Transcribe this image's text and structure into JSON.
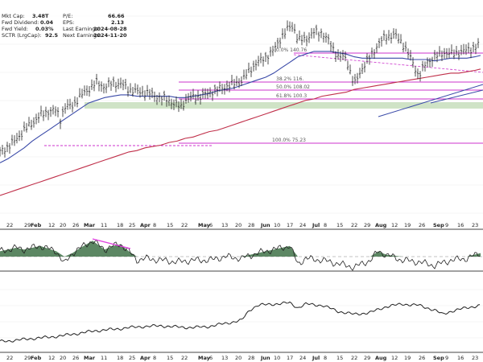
{
  "info": {
    "left": [
      {
        "label": "Mkt Cap:",
        "value": "3.48T"
      },
      {
        "label": "Fwd Dividend:",
        "value": "0.04"
      },
      {
        "label": "Fwd Yield:",
        "value": "0.03%"
      },
      {
        "label": "SCTR (LrgCap):",
        "value": "92.5"
      }
    ],
    "right": [
      {
        "label": "P/E:",
        "value": "66.66"
      },
      {
        "label": "EPS:",
        "value": "2.13"
      },
      {
        "label": "Last Earnings:",
        "value": "2024-08-28"
      },
      {
        "label": "Next Earnings:",
        "value": "2024-11-20"
      }
    ]
  },
  "colors": {
    "price": "#222222",
    "ma50": "#3a4aa8",
    "ma200": "#c0304a",
    "fib": "#cc33cc",
    "zone": "#cfe3c6",
    "panel_fill": "#4a7a52",
    "trend": "#3a4aa8"
  },
  "x_axis_ticks": [
    "22",
    "29",
    "Feb",
    "12",
    "20",
    "26",
    "Mar",
    "11",
    "18",
    "25",
    "Apr",
    "8",
    "15",
    "22",
    "May",
    "6",
    "13",
    "20",
    "28",
    "Jun",
    "10",
    "17",
    "24",
    "Jul",
    "8",
    "15",
    "22",
    "29",
    "Aug",
    "12",
    "19",
    "26",
    "Sep",
    "9",
    "16",
    "23"
  ],
  "x_axis_month_ticks": [
    "Feb",
    "Mar",
    "Apr",
    "May",
    "Jun",
    "Jul",
    "Aug",
    "Sep"
  ],
  "fib_levels": [
    {
      "label": "0.0% 140.76",
      "value": 140.76
    },
    {
      "label": "38.2% 116.",
      "value": 116.0
    },
    {
      "label": "50.0% 108.02",
      "value": 108.02
    },
    {
      "label": "61.8% 100.3",
      "value": 100.3
    },
    {
      "label": "100.0% 75.23",
      "value": 75.23
    }
  ],
  "chart_data": [
    {
      "type": "line",
      "title": "",
      "series": [
        {
          "name": "",
          "role": "price",
          "x": [
            0,
            10,
            20,
            30,
            40,
            50,
            60,
            70,
            75,
            80,
            90,
            100,
            110,
            120,
            130,
            140,
            150,
            160,
            170,
            180,
            190,
            200,
            210,
            220,
            225,
            230,
            240,
            250,
            260,
            270,
            280,
            290,
            300,
            305,
            310,
            320,
            330,
            340,
            350,
            360,
            365,
            370,
            380,
            390,
            400,
            410,
            420,
            430,
            440,
            450,
            460,
            470,
            480,
            490,
            500,
            510,
            520,
            530,
            540,
            550,
            560,
            570,
            580,
            590,
            597
          ],
          "values": [
            48,
            52,
            57,
            64,
            69,
            75,
            78,
            79,
            72,
            81,
            82,
            89,
            94,
            99,
            96,
            99,
            98,
            94,
            92,
            92,
            90,
            88,
            86,
            82,
            81,
            86,
            88,
            89,
            92,
            94,
            96,
            98,
            100,
            104,
            108,
            114,
            118,
            123,
            133,
            140,
            140,
            130,
            131,
            136,
            136,
            128,
            118,
            117,
            97,
            110,
            118,
            128,
            133,
            134,
            128,
            117,
            104,
            114,
            118,
            121,
            120,
            121,
            123,
            125,
            128
          ]
        },
        {
          "name": "",
          "role": "ma50",
          "values": [
            40,
            43,
            47,
            51,
            56,
            60,
            64,
            68,
            70,
            72,
            76,
            80,
            84,
            86,
            88,
            89,
            90,
            90,
            89,
            89,
            89,
            89,
            89,
            88,
            88,
            88,
            89,
            90,
            91,
            93,
            94,
            95,
            97,
            98,
            99,
            101,
            103,
            106,
            110,
            114,
            116,
            118,
            120,
            122,
            122,
            122,
            121,
            120,
            118,
            117,
            117,
            117,
            117,
            117,
            117,
            116,
            116,
            116,
            115,
            116,
            117,
            117,
            117,
            118,
            119
          ]
        },
        {
          "name": "",
          "role": "ma200",
          "values": [
            16,
            18,
            20,
            22,
            24,
            26,
            28,
            30,
            31,
            32,
            34,
            36,
            38,
            40,
            42,
            44,
            46,
            48,
            49,
            51,
            52,
            53,
            55,
            56,
            57,
            58,
            59,
            61,
            63,
            64,
            66,
            68,
            70,
            71,
            72,
            74,
            76,
            78,
            80,
            82,
            83,
            84,
            86,
            87,
            89,
            90,
            91,
            92,
            94,
            95,
            96,
            97,
            98,
            99,
            100,
            101,
            102,
            103,
            104,
            105,
            106,
            106,
            107,
            108,
            109
          ]
        }
      ]
    },
    {
      "type": "area",
      "title": "",
      "x": [
        0,
        20,
        30,
        50,
        70,
        80,
        90,
        100,
        115,
        130,
        140,
        150,
        160,
        170,
        180,
        200,
        220,
        240,
        260,
        280,
        300,
        320,
        340,
        360,
        370,
        380,
        400,
        420,
        440,
        460,
        470,
        480,
        500,
        520,
        540,
        560,
        580,
        597
      ],
      "values": [
        0.3,
        0.5,
        0.4,
        0.6,
        0.3,
        -0.4,
        0.2,
        0.5,
        0.9,
        0.4,
        0.6,
        0.7,
        0.3,
        -0.2,
        -0.1,
        -0.2,
        -0.3,
        -0.2,
        -0.2,
        0.0,
        -0.1,
        0.2,
        0.4,
        0.6,
        -0.4,
        -0.1,
        -0.2,
        -0.4,
        -0.6,
        -0.2,
        0.3,
        0.1,
        -0.2,
        -0.3,
        -0.5,
        -0.2,
        -0.1,
        0.2
      ]
    },
    {
      "type": "line",
      "title": "",
      "x": [
        0,
        20,
        40,
        60,
        80,
        100,
        120,
        140,
        160,
        180,
        200,
        220,
        240,
        260,
        280,
        300,
        310,
        320,
        340,
        360,
        370,
        380,
        400,
        420,
        440,
        460,
        480,
        500,
        520,
        540,
        550,
        560,
        580,
        597
      ],
      "values": [
        10,
        12,
        15,
        17,
        20,
        24,
        28,
        30,
        33,
        35,
        36,
        34,
        33,
        35,
        40,
        45,
        62,
        70,
        72,
        74,
        66,
        72,
        70,
        60,
        55,
        58,
        68,
        72,
        70,
        62,
        55,
        60,
        66,
        70
      ]
    }
  ]
}
